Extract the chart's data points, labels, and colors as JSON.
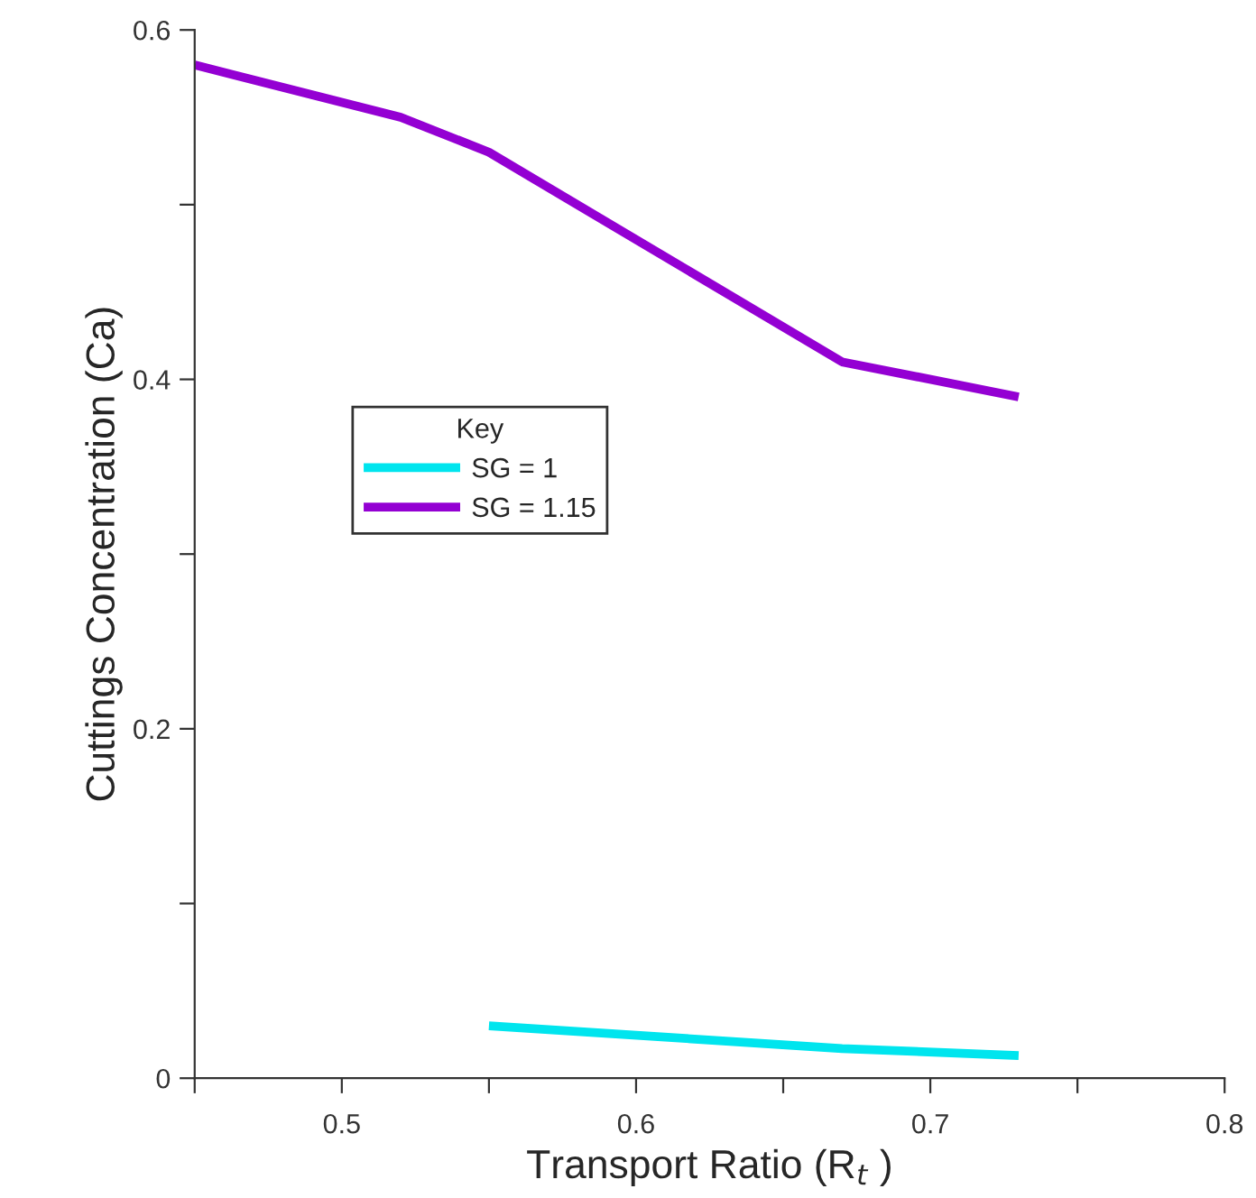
{
  "chart_data": {
    "type": "line",
    "xlabel": "Transport Ratio (R$_{t}$ )",
    "ylabel": "Cuttings Concentration (Ca)",
    "legend_title": "Key",
    "series": [
      {
        "name": "SG = 1",
        "color": "#00e5ee",
        "x": [
          0.55,
          0.67,
          0.73
        ],
        "values": [
          0.03,
          0.017,
          0.013
        ]
      },
      {
        "name": "SG = 1.15",
        "color": "#9400d3",
        "x": [
          0.45,
          0.52,
          0.55,
          0.67,
          0.73
        ],
        "values": [
          0.58,
          0.55,
          0.53,
          0.41,
          0.39
        ]
      }
    ],
    "xlim": [
      0.45,
      0.8
    ],
    "ylim": [
      0,
      0.6
    ],
    "xticks": [
      {
        "value": 0.45,
        "label": null
      },
      0.5,
      {
        "value": 0.55,
        "label": null
      },
      0.6,
      {
        "value": 0.65,
        "label": null
      },
      0.7,
      {
        "value": 0.75,
        "label": null
      },
      0.8
    ],
    "yticks": [
      0,
      {
        "value": 0.1,
        "label": null
      },
      0.2,
      {
        "value": 0.3,
        "label": null
      },
      0.4,
      {
        "value": 0.5,
        "label": null
      },
      0.6
    ],
    "grid": false,
    "legend": "left",
    "line_style": "solid",
    "marker": "none"
  }
}
